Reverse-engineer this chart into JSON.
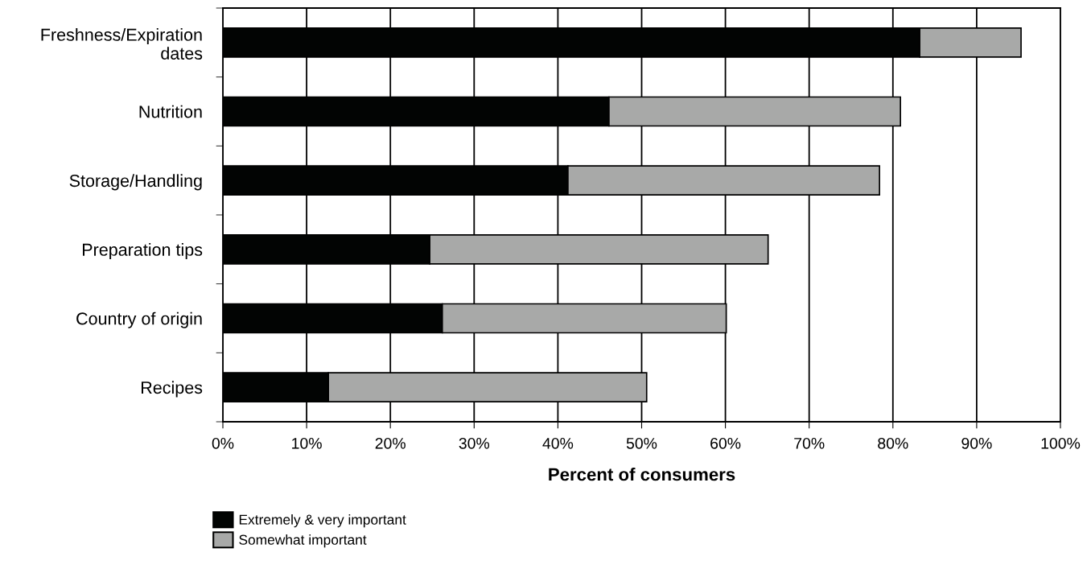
{
  "chart_data": {
    "type": "bar",
    "orientation": "horizontal",
    "stacked": true,
    "categories": [
      "Freshness/Expiration\ndates",
      "Nutrition",
      "Storage/Handling",
      "Preparation tips",
      "Country of origin",
      "Recipes"
    ],
    "series": [
      {
        "name": "Extremely & very important",
        "color": "#020403",
        "values": [
          83.2,
          46.1,
          41.2,
          24.7,
          26.2,
          12.6
        ]
      },
      {
        "name": "Somewhat important",
        "color": "#a8a9a8",
        "values": [
          12.1,
          34.8,
          37.2,
          40.4,
          33.9,
          38.0
        ]
      }
    ],
    "xlabel": "Percent of consumers",
    "xlim": [
      0,
      100
    ],
    "xticks": [
      {
        "value": 0,
        "label": "0%"
      },
      {
        "value": 10,
        "label": "10%"
      },
      {
        "value": 20,
        "label": "20%"
      },
      {
        "value": 30,
        "label": "30%"
      },
      {
        "value": 40,
        "label": "40%"
      },
      {
        "value": 50,
        "label": "50%"
      },
      {
        "value": 60,
        "label": "60%"
      },
      {
        "value": 70,
        "label": "70%"
      },
      {
        "value": 80,
        "label": "80%"
      },
      {
        "value": 90,
        "label": "90%"
      },
      {
        "value": 100,
        "label": "100%"
      }
    ],
    "grid": "x",
    "legend": "bottom left"
  }
}
